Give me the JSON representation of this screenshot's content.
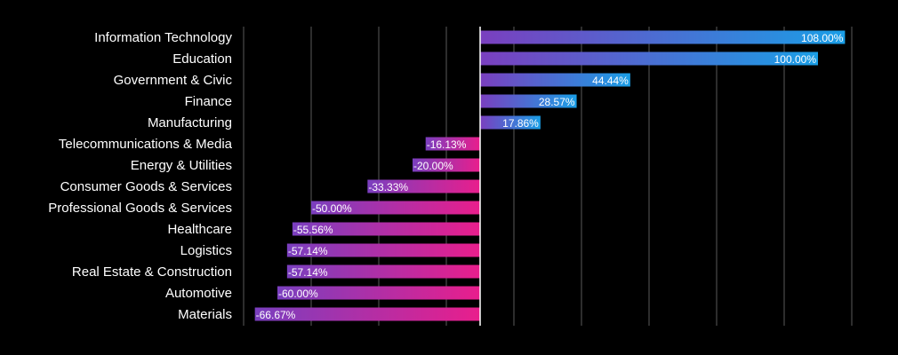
{
  "chart_data": {
    "type": "bar",
    "orientation": "horizontal",
    "title": "",
    "xlabel": "",
    "ylabel": "",
    "categories": [
      "Information Technology",
      "Education",
      "Government & Civic",
      "Finance",
      "Manufacturing",
      "Telecommunications & Media",
      "Energy & Utilities",
      "Consumer Goods & Services",
      "Professional Goods & Services",
      "Healthcare",
      "Logistics",
      "Real Estate & Construction",
      "Automotive",
      "Materials"
    ],
    "values": [
      108.0,
      100.0,
      44.44,
      28.57,
      17.86,
      -16.13,
      -20.0,
      -33.33,
      -50.0,
      -55.56,
      -57.14,
      -57.14,
      -60.0,
      -66.67
    ],
    "value_labels": [
      "108.00%",
      "100.00%",
      "44.44%",
      "28.57%",
      "17.86%",
      "-16.13%",
      "-20.00%",
      "-33.33%",
      "-50.00%",
      "-55.56%",
      "-57.14%",
      "-57.14%",
      "-60.00%",
      "-66.67%"
    ],
    "unit": "%",
    "xlim": [
      -70,
      110
    ],
    "grid_step": 20,
    "grid": true,
    "legend": false,
    "colors": {
      "background": "#000000",
      "positive_start": "#7a3fbf",
      "positive_end": "#1a9ee6",
      "negative_start": "#7a3fbf",
      "negative_end": "#e91e8c",
      "grid": "#5a5a5a",
      "zero_line": "#ffffff",
      "text": "#ffffff"
    }
  }
}
